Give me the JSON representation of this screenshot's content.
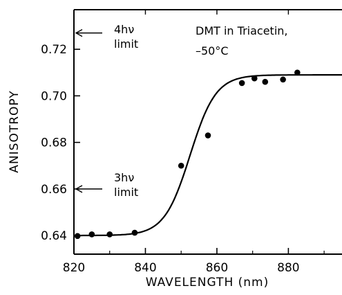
{
  "chart_data": {
    "type": "scatter",
    "title": "",
    "xlabel": "WAVELENGTH (nm)",
    "ylabel": "ANISOTROPY",
    "xlim": [
      820,
      895
    ],
    "ylim": [
      0.632,
      0.737
    ],
    "xticks": [
      820,
      840,
      860,
      880
    ],
    "xtick_labels": [
      "820",
      "840",
      "860",
      "880"
    ],
    "yticks": [
      0.64,
      0.66,
      0.68,
      0.7,
      0.72
    ],
    "ytick_labels": [
      "0.64",
      "0.66",
      "0.68",
      "0.70",
      "0.72"
    ],
    "grid": false,
    "series": [
      {
        "points": [
          {
            "x": 821,
            "y": 0.6398
          },
          {
            "x": 825,
            "y": 0.6405
          },
          {
            "x": 830,
            "y": 0.6405
          },
          {
            "x": 837,
            "y": 0.6412
          },
          {
            "x": 850,
            "y": 0.67
          },
          {
            "x": 857.5,
            "y": 0.683
          },
          {
            "x": 867,
            "y": 0.7055
          },
          {
            "x": 870.5,
            "y": 0.7075
          },
          {
            "x": 873.5,
            "y": 0.706
          },
          {
            "x": 878.5,
            "y": 0.707
          },
          {
            "x": 882.5,
            "y": 0.71
          }
        ]
      }
    ],
    "fit_curve": {
      "baseline": 0.64,
      "plateau": 0.709,
      "midpoint": 852.5,
      "width": 3.6,
      "x_range": [
        821,
        895
      ]
    },
    "annotations": {
      "limit_4hv": {
        "line1": "4hν",
        "line2": "limit",
        "y": 0.727
      },
      "limit_3hv": {
        "line1": "3hν",
        "line2": "limit",
        "y": 0.66
      },
      "sample": {
        "line1": "DMT in Triacetin,",
        "line2": "–50°C"
      }
    }
  }
}
